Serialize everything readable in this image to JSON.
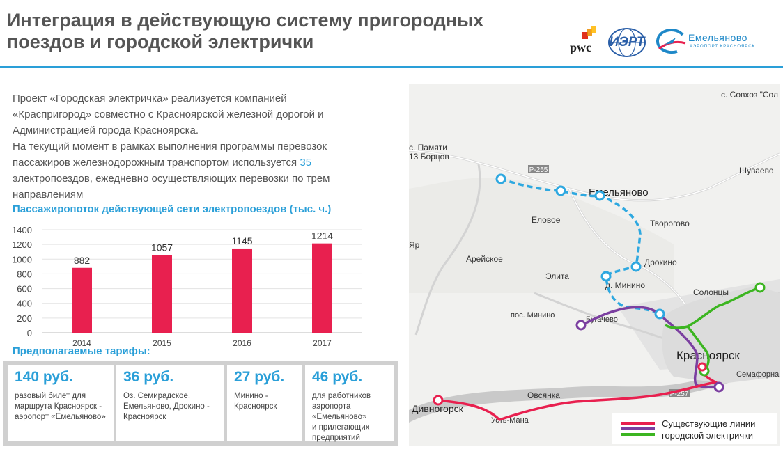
{
  "title": {
    "line1": "Интеграция в действующую систему пригородных",
    "line2": "поездов и городской электрички"
  },
  "logos": {
    "pwc": "pwc",
    "iert": "ИЭРТ",
    "emelyanovo_name": "Емельяново",
    "emelyanovo_sub": "АЭРОПОРТ КРАСНОЯРСК"
  },
  "intro": {
    "line1": "Проект «Городская электричка» реализуется компанией",
    "line2": "«Краспригород» совместно с Красноярской железной дорогой и",
    "line3": "Администрацией города Красноярска.",
    "line4": "На текущий момент в рамках выполнения программы перевозок",
    "line5_pre": "пассажиров железнодорожным транспортом используется ",
    "line5_num": "35",
    "line6": "электропоездов, ежедневно осуществляющих перевозки по трем",
    "line7": "направлениям"
  },
  "chart_title": "Пассажиропоток действующей сети электропоездов (тыс. ч.)",
  "chart_data": {
    "type": "bar",
    "categories": [
      "2014",
      "2015",
      "2016",
      "2017"
    ],
    "values": [
      882,
      1057,
      1145,
      1214
    ],
    "yticks": [
      "1400",
      "1200",
      "1000",
      "800",
      "600",
      "400",
      "200",
      "0"
    ],
    "ylim": [
      0,
      1400
    ],
    "grid": true,
    "bar_color": "#e8204f"
  },
  "tariffs": {
    "title": "Предполагаемые тарифы:",
    "items": [
      {
        "price": "140 руб.",
        "desc1": "разовый билет для",
        "desc2": "маршрута Красноярск -",
        "desc3": "аэропорт «Емельяново»",
        "desc4": ""
      },
      {
        "price": "36 руб.",
        "desc1": "Оз. Семирадское,",
        "desc2": "Емельяново, Дрокино -",
        "desc3": "Красноярск",
        "desc4": ""
      },
      {
        "price": "27 руб.",
        "desc1": "Минино -",
        "desc2": "Красноярск",
        "desc3": "",
        "desc4": ""
      },
      {
        "price": "46 руб.",
        "desc1": "для работников",
        "desc2": "аэропорта",
        "desc3": "«Емельяново»",
        "desc4": "и прилегающих",
        "desc5": "предприятий"
      }
    ]
  },
  "map": {
    "labels": {
      "sovhoz": "с. Совхоз \"Сол",
      "pamyati1": "с. Памяти",
      "pamyati2": "13 Борцов",
      "r255": "Р-255",
      "emelyanovo": "Емельяново",
      "shuvaevo": "Шуваево",
      "elovoe": "Еловое",
      "tvorogovo": "Творогово",
      "yar": "Яр",
      "areiskoe": "Арейское",
      "drokino": "Дрокино",
      "elita": "Элита",
      "minino_d": "д. Минино",
      "solontsy": "Солонцы",
      "minino_pos": "пос. Минино",
      "bugachevo": "Бугачево",
      "krasnoyarsk": "Красноярск",
      "semafornaya": "Семафорна",
      "r257": "Р-257",
      "ovsyanka": "Овсянка",
      "divnogorsk": "Дивногорск",
      "ust_mana": "Усть-Мана"
    },
    "colors": {
      "existing": "#e8204f",
      "planned": "#2ea8e0",
      "purple": "#7b3fa0",
      "green": "#3cb521"
    }
  },
  "legend": {
    "line1": "Существующие линии",
    "line2": "городской электрички"
  }
}
